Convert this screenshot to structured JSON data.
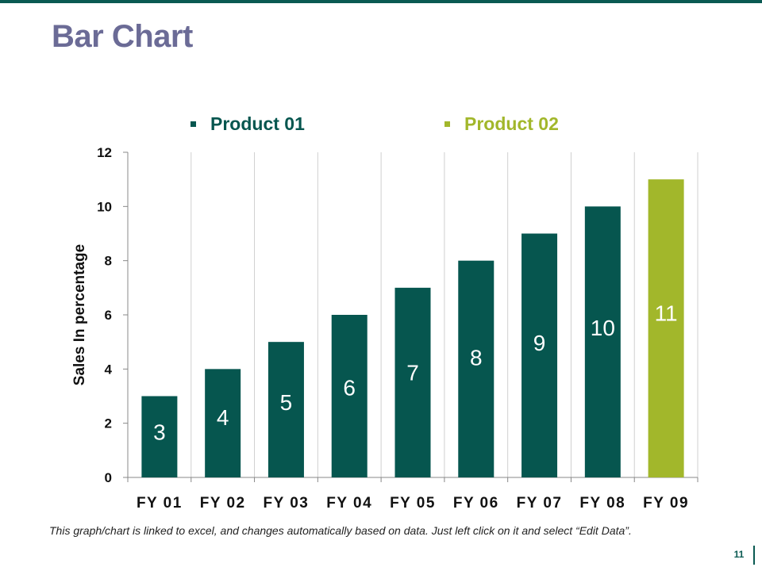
{
  "slide": {
    "title": "Bar Chart",
    "footnote": "This graph/chart is linked to excel, and changes automatically based on data. Just left click on it and select “Edit Data”.",
    "page_number": "11"
  },
  "colors": {
    "title": "#6b6b96",
    "accent": "#0a5a52",
    "product_01": "#06564f",
    "product_02": "#a2b72b",
    "grid": "#d0d0d0",
    "axis": "#888888",
    "bar_label": "#ffffff"
  },
  "chart_data": {
    "type": "bar",
    "title": "",
    "xlabel": "",
    "ylabel": "Sales In percentage",
    "ylim": [
      0,
      12
    ],
    "yticks": [
      0,
      2,
      4,
      6,
      8,
      10,
      12
    ],
    "categories": [
      "FY 01",
      "FY 02",
      "FY 03",
      "FY 04",
      "FY 05",
      "FY 06",
      "FY 07",
      "FY 08",
      "FY 09"
    ],
    "series": [
      {
        "name": "Product 01",
        "values": [
          3,
          4,
          5,
          6,
          7,
          8,
          9,
          10,
          null
        ]
      },
      {
        "name": "Product 02",
        "values": [
          null,
          null,
          null,
          null,
          null,
          null,
          null,
          null,
          11
        ]
      }
    ],
    "legend_position": "top",
    "data_labels": true,
    "grid": "vertical"
  }
}
